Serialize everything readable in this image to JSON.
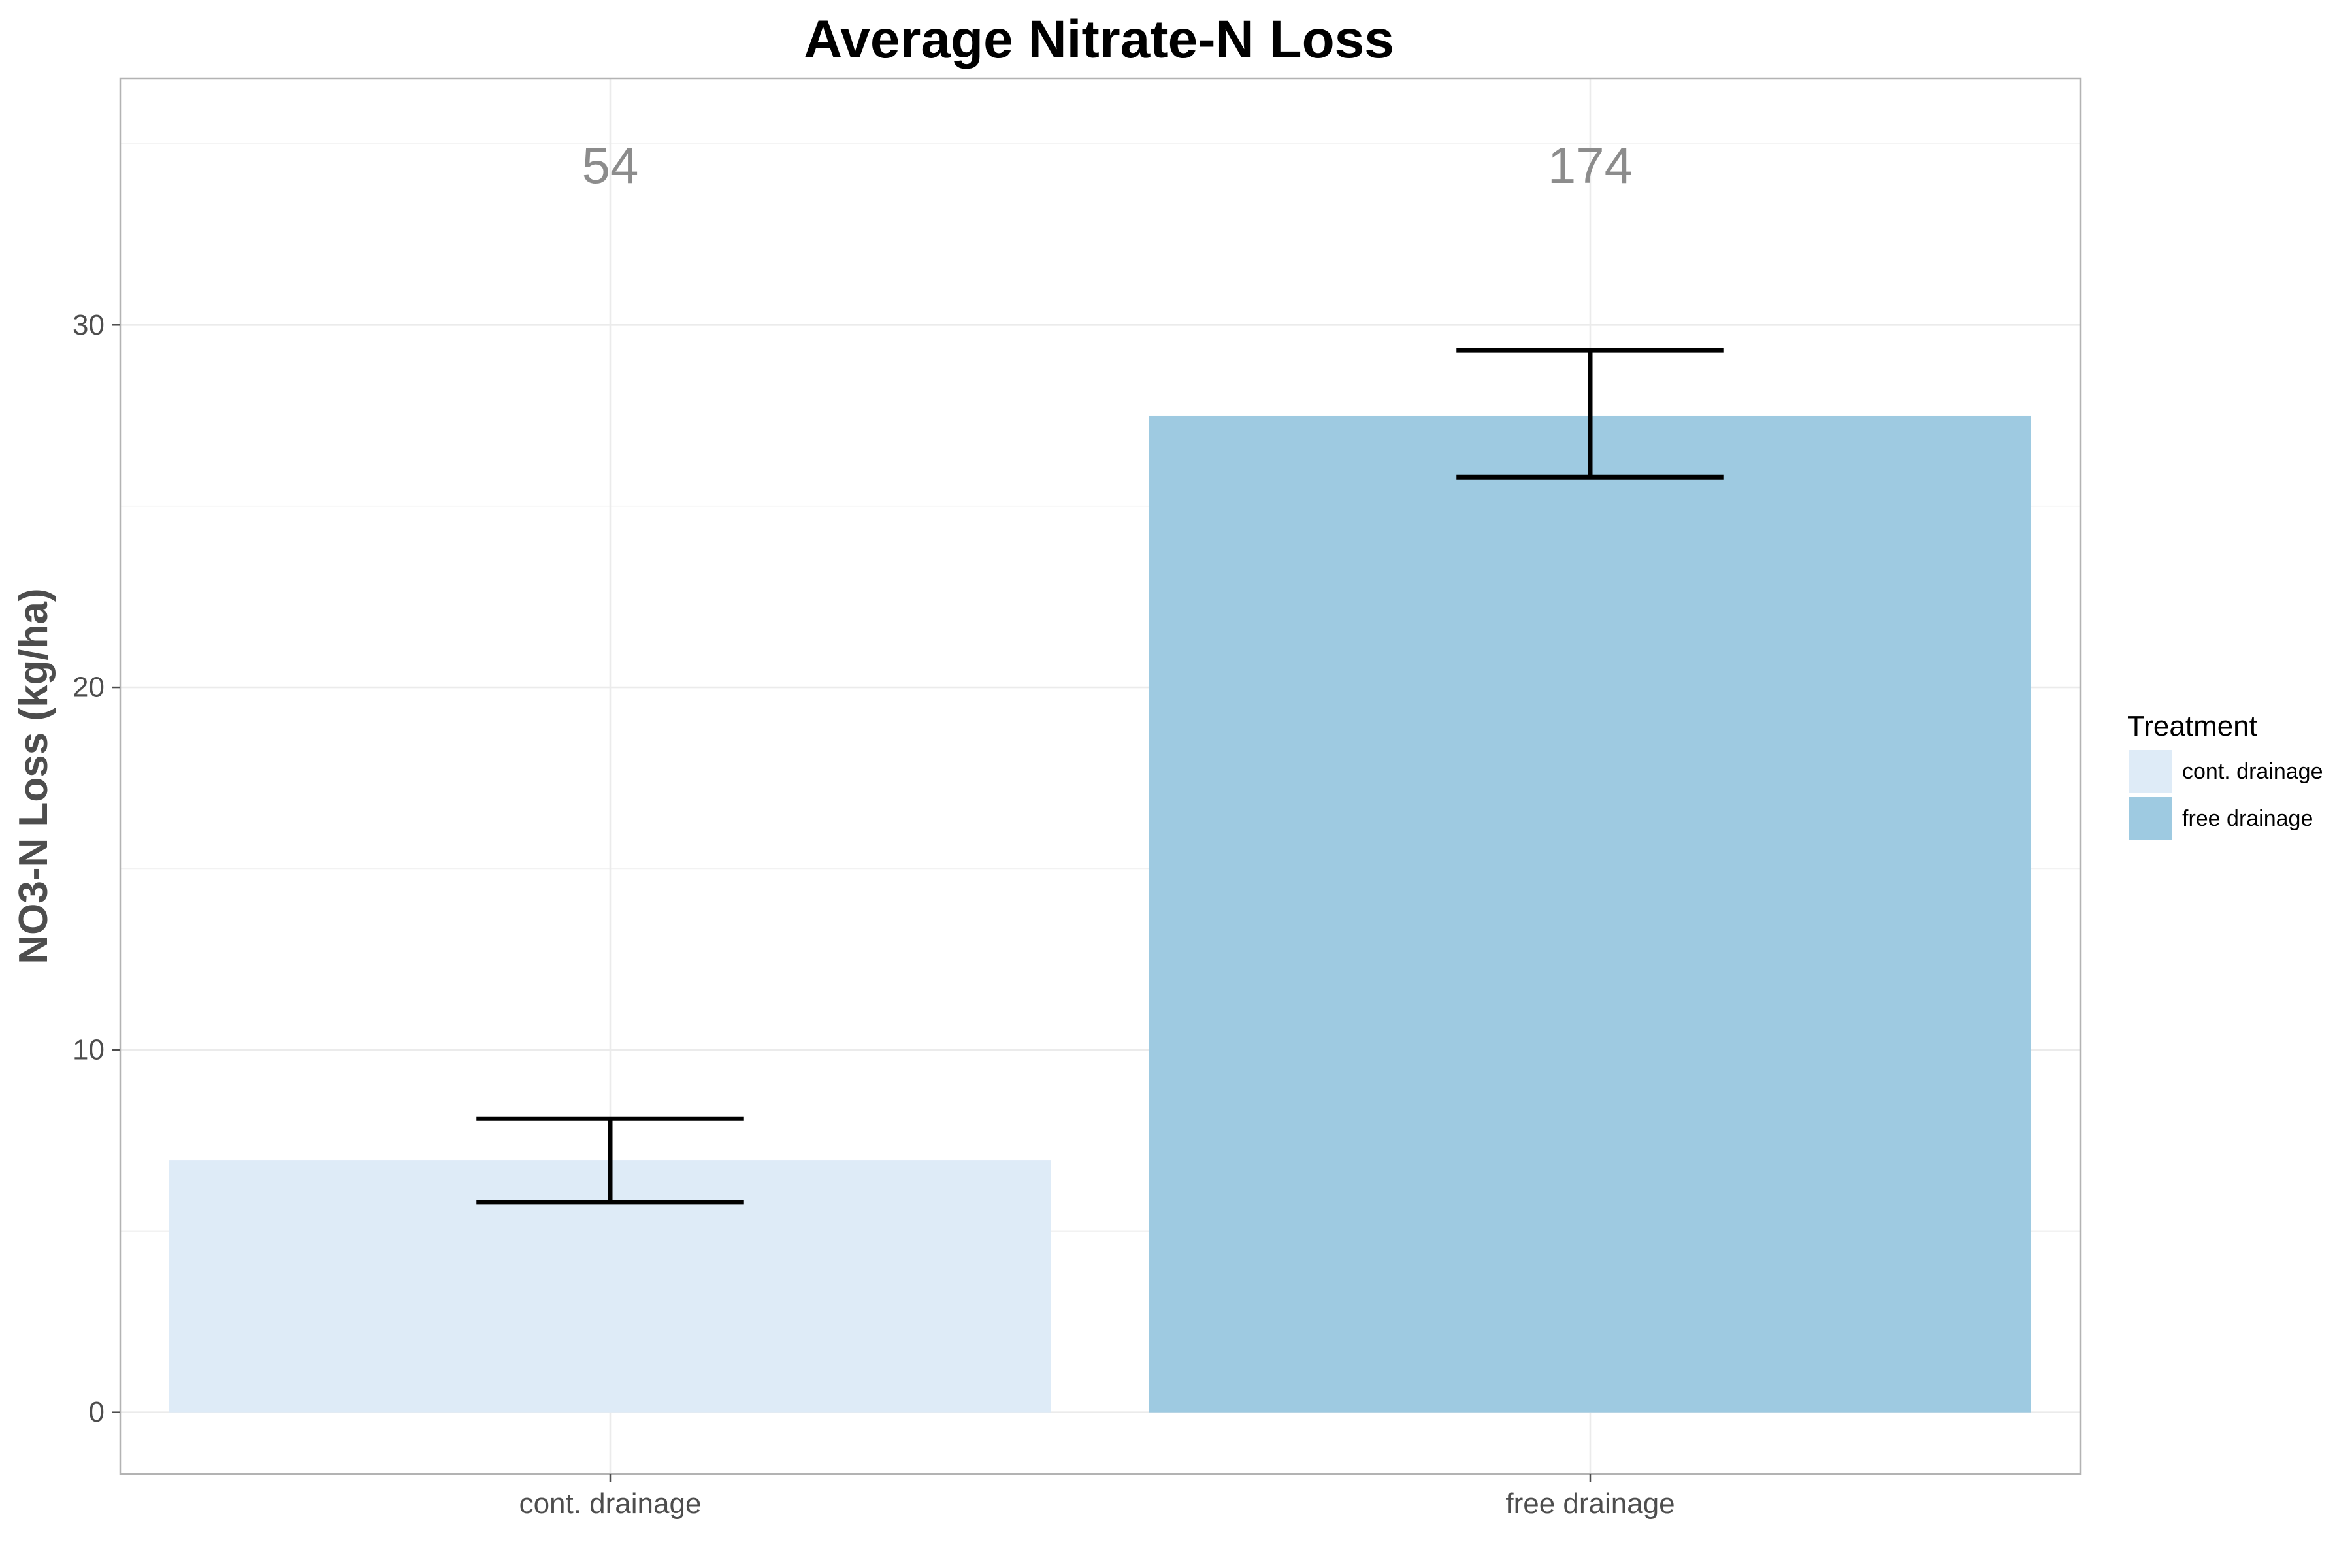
{
  "chart_data": {
    "type": "bar",
    "title": "Average Nitrate-N Loss",
    "xlabel": "",
    "ylabel": "NO3-N Loss (kg/ha)",
    "categories": [
      "cont. drainage",
      "free drainage"
    ],
    "values": [
      6.95,
      27.5
    ],
    "error_low": [
      5.8,
      25.8
    ],
    "error_high": [
      8.1,
      29.3
    ],
    "count_labels": [
      "54",
      "174"
    ],
    "count_label_y": 34.4,
    "ylim": [
      -1.7,
      36.8
    ],
    "yticks": [
      0,
      10,
      20,
      30
    ],
    "grid": true,
    "legend": {
      "title": "Treatment",
      "placement": "right",
      "entries": [
        "cont. drainage",
        "free drainage"
      ]
    },
    "colors": {
      "cont. drainage": "#deebf7",
      "free drainage": "#9ecae1",
      "error_bar": "#000000",
      "grid": "#ebebeb",
      "panel_border": "#b3b3b3"
    }
  }
}
